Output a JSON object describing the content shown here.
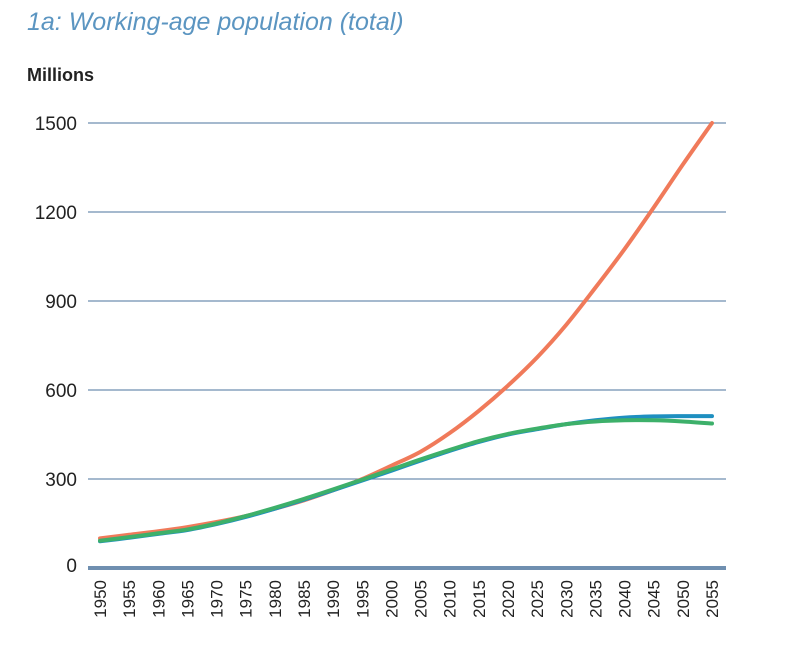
{
  "chart_data": {
    "type": "line",
    "title": "1a: Working-age population (total)",
    "ylabel": "Millions",
    "xlabel": "",
    "ylim": [
      0,
      1500
    ],
    "yticks": [
      0,
      300,
      600,
      900,
      1200,
      1500
    ],
    "grid": true,
    "x": [
      1950,
      1955,
      1960,
      1965,
      1970,
      1975,
      1980,
      1985,
      1990,
      1995,
      2000,
      2005,
      2010,
      2015,
      2020,
      2025,
      2030,
      2035,
      2040,
      2045,
      2050,
      2055
    ],
    "series": [
      {
        "color": "#f07a5a",
        "values": [
          100,
          112,
          124,
          138,
          155,
          175,
          200,
          228,
          262,
          300,
          345,
          392,
          455,
          530,
          615,
          710,
          820,
          945,
          1075,
          1215,
          1360,
          1500
        ]
      },
      {
        "color": "#1e8fc0",
        "values": [
          90,
          102,
          115,
          128,
          148,
          172,
          200,
          230,
          262,
          295,
          328,
          362,
          395,
          425,
          450,
          468,
          485,
          498,
          507,
          511,
          512,
          512
        ]
      },
      {
        "color": "#3db06a",
        "values": [
          92,
          104,
          117,
          130,
          150,
          175,
          203,
          233,
          265,
          298,
          332,
          366,
          398,
          428,
          452,
          470,
          485,
          494,
          498,
          498,
          494,
          487
        ]
      }
    ]
  },
  "colors": {
    "axis": "#6f8fb0",
    "grid": "#6f8fb0",
    "title": "#5b95c1"
  }
}
